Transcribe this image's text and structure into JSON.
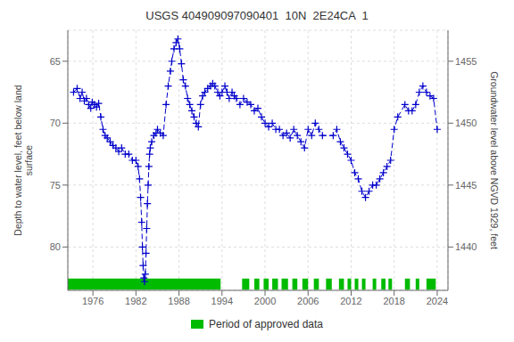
{
  "chart_data": {
    "type": "line",
    "title": "USGS 404909097090401  10N  2E24CA  1",
    "y_label": "Depth to water level, feet below land\nsurface",
    "y2_label": "Groundwater level above NGVD 1929, feet",
    "xlim": [
      1972.5,
      2025.5
    ],
    "xticks": [
      1976,
      1982,
      1988,
      1994,
      2000,
      2006,
      2012,
      2018,
      2024
    ],
    "ylim": [
      83.5,
      62.5
    ],
    "yticks": [
      65,
      70,
      75,
      80
    ],
    "y2lim": [
      1436.5,
      1457.5
    ],
    "y2ticks": [
      1440,
      1445,
      1450,
      1455
    ],
    "grid": true,
    "legend": "bottom",
    "color": "#0000cc",
    "marker": "plus",
    "line_style": "dashed",
    "x": [
      1973.3,
      1973.8,
      1974.2,
      1974.5,
      1974.8,
      1975.1,
      1975.4,
      1975.7,
      1975.9,
      1976.2,
      1976.5,
      1976.8,
      1977.1,
      1977.4,
      1977.7,
      1978.0,
      1978.4,
      1978.8,
      1979.2,
      1979.6,
      1980.0,
      1980.5,
      1981.0,
      1981.5,
      1982.0,
      1982.3,
      1982.5,
      1982.65,
      1982.8,
      1982.9,
      1983.0,
      1983.1,
      1983.2,
      1983.3,
      1983.4,
      1983.5,
      1983.6,
      1983.7,
      1983.8,
      1983.9,
      1984.0,
      1984.2,
      1984.5,
      1984.8,
      1985.0,
      1985.4,
      1985.8,
      1986.2,
      1986.5,
      1986.8,
      1987.0,
      1987.3,
      1987.6,
      1987.85,
      1988.1,
      1988.35,
      1988.6,
      1988.9,
      1989.2,
      1989.5,
      1989.8,
      1990.1,
      1990.4,
      1990.7,
      1991.0,
      1991.3,
      1991.6,
      1992.0,
      1992.4,
      1992.7,
      1993.0,
      1993.4,
      1993.7,
      1994.0,
      1994.4,
      1994.7,
      1995.0,
      1995.4,
      1995.7,
      1996.0,
      1996.5,
      1997.0,
      1997.5,
      1998.0,
      1998.5,
      1999.0,
      1999.5,
      2000.0,
      2000.5,
      2001.0,
      2001.5,
      2002.0,
      2002.5,
      2003.0,
      2003.5,
      2004.0,
      2004.5,
      2005.0,
      2005.5,
      2006.0,
      2006.5,
      2007.0,
      2007.5,
      2008.0,
      2009.5,
      2010.0,
      2010.5,
      2011.0,
      2011.5,
      2012.0,
      2012.5,
      2013.0,
      2013.5,
      2014.0,
      2014.5,
      2015.0,
      2015.5,
      2016.0,
      2016.5,
      2017.0,
      2017.5,
      2018.0,
      2018.5,
      2019.5,
      2020.0,
      2020.5,
      2021.0,
      2021.5,
      2022.0,
      2022.5,
      2023.0,
      2023.5,
      2024.0
    ],
    "values": [
      67.5,
      67.2,
      68.0,
      67.5,
      68.2,
      68.0,
      68.5,
      68.8,
      68.3,
      68.5,
      68.7,
      68.4,
      69.5,
      70.5,
      71.0,
      71.2,
      71.5,
      71.8,
      72.0,
      72.3,
      72.0,
      72.5,
      72.5,
      73.0,
      73.0,
      73.5,
      74.5,
      76.0,
      78.0,
      80.0,
      81.5,
      82.5,
      82.8,
      82.2,
      80.5,
      78.5,
      76.5,
      75.0,
      73.5,
      72.5,
      72.0,
      71.5,
      71.0,
      70.8,
      70.5,
      70.8,
      71.0,
      68.5,
      67.0,
      65.8,
      65.0,
      64.0,
      63.5,
      63.2,
      64.0,
      65.2,
      66.5,
      67.0,
      68.0,
      68.5,
      69.0,
      69.5,
      70.0,
      70.3,
      68.5,
      67.8,
      67.5,
      67.2,
      67.0,
      66.8,
      67.0,
      67.5,
      67.8,
      67.5,
      67.0,
      67.5,
      68.0,
      67.5,
      67.8,
      68.0,
      68.5,
      68.0,
      68.3,
      68.5,
      69.0,
      68.8,
      69.5,
      70.0,
      70.3,
      70.0,
      70.5,
      70.5,
      71.0,
      70.8,
      71.2,
      70.5,
      71.0,
      71.5,
      72.0,
      70.5,
      71.0,
      70.0,
      70.5,
      71.0,
      71.0,
      70.5,
      71.5,
      72.0,
      72.5,
      73.0,
      74.0,
      74.5,
      75.5,
      76.0,
      75.5,
      75.0,
      75.0,
      74.5,
      74.0,
      73.5,
      73.0,
      70.5,
      69.5,
      68.5,
      69.0,
      69.0,
      68.5,
      67.5,
      67.0,
      67.5,
      67.8,
      68.0,
      70.5
    ],
    "approved_periods": {
      "name": "Period of approved data",
      "color": "#00bb00",
      "y": 83.0,
      "height": 0.9,
      "periods": [
        [
          1972.5,
          1993.8
        ],
        [
          1996.8,
          1997.8
        ],
        [
          1998.5,
          1999.2
        ],
        [
          1999.8,
          2000.5
        ],
        [
          2001.0,
          2001.8
        ],
        [
          2002.3,
          2003.2
        ],
        [
          2003.8,
          2004.5
        ],
        [
          2005.2,
          2006.0
        ],
        [
          2006.8,
          2007.5
        ],
        [
          2008.5,
          2009.3
        ],
        [
          2010.3,
          2011.0
        ],
        [
          2011.5,
          2012.0
        ],
        [
          2012.5,
          2013.0
        ],
        [
          2013.5,
          2014.0
        ],
        [
          2015.0,
          2015.5
        ],
        [
          2016.2,
          2016.8
        ],
        [
          2017.2,
          2017.7
        ],
        [
          2019.5,
          2020.2
        ],
        [
          2021.0,
          2021.5
        ],
        [
          2022.5,
          2023.8
        ]
      ]
    }
  }
}
